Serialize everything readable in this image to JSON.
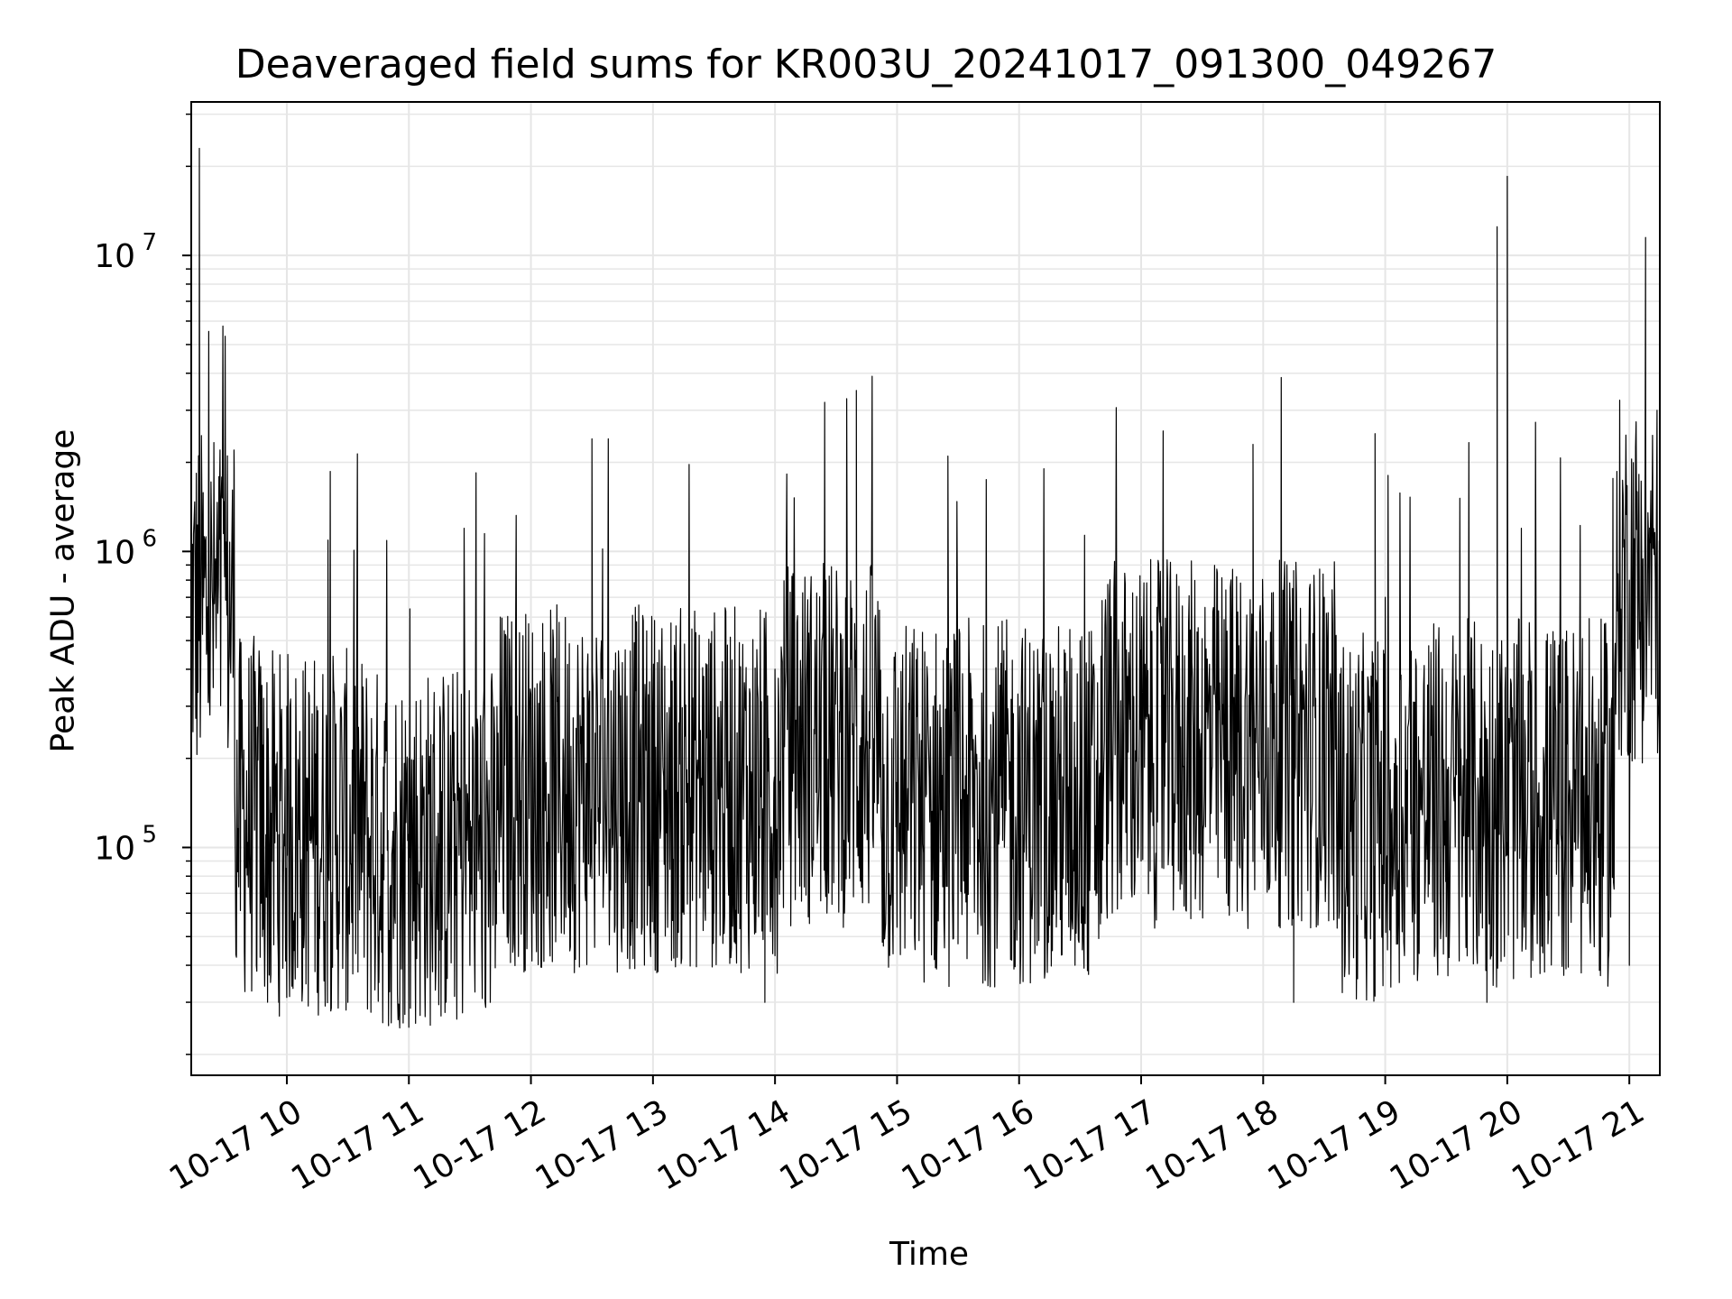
{
  "chart_data": {
    "type": "line",
    "title": "Deaveraged field sums for KR003U_20241017_091300_049267",
    "xlabel": "Time",
    "ylabel": "Peak ADU - average",
    "yscale": "log",
    "ylim": [
      17000,
      33000000
    ],
    "xlim": [
      "2024-10-17 09:13",
      "2024-10-17 21:15"
    ],
    "x_tick_labels": [
      "10-17 10",
      "10-17 11",
      "10-17 12",
      "10-17 13",
      "10-17 14",
      "10-17 15",
      "10-17 16",
      "10-17 17",
      "10-17 18",
      "10-17 19",
      "10-17 20",
      "10-17 21"
    ],
    "y_tick_labels": [
      {
        "base": "10",
        "exp": "5"
      },
      {
        "base": "10",
        "exp": "6"
      },
      {
        "base": "10",
        "exp": "7"
      }
    ],
    "grid": true,
    "line_color": "#000000",
    "grid_color": "#e6e6e6",
    "series": [
      {
        "x": [
          "2024-10-17 09:13",
          "2024-10-17 09:15",
          "2024-10-17 09:17",
          "2024-10-17 09:19",
          "2024-10-17 09:21",
          "2024-10-17 09:24",
          "2024-10-17 09:27",
          "2024-10-17 09:30",
          "2024-10-17 09:34",
          "2024-10-17 09:38",
          "2024-10-17 09:42",
          "2024-10-17 09:45",
          "2024-10-17 09:48",
          "2024-10-17 09:52",
          "2024-10-17 09:56",
          "2024-10-17 10:00",
          "2024-10-17 10:15",
          "2024-10-17 10:30",
          "2024-10-17 10:45",
          "2024-10-17 10:50",
          "2024-10-17 11:00",
          "2024-10-17 11:15",
          "2024-10-17 11:30",
          "2024-10-17 11:40",
          "2024-10-17 11:50",
          "2024-10-17 12:00",
          "2024-10-17 12:30",
          "2024-10-17 12:50",
          "2024-10-17 13:00",
          "2024-10-17 13:30",
          "2024-10-17 13:55",
          "2024-10-17 14:00",
          "2024-10-17 14:25",
          "2024-10-17 14:40",
          "2024-10-17 14:45",
          "2024-10-17 15:00",
          "2024-10-17 15:25",
          "2024-10-17 15:30",
          "2024-10-17 16:00",
          "2024-10-17 16:30",
          "2024-10-17 17:00",
          "2024-10-17 17:30",
          "2024-10-17 17:55",
          "2024-10-17 18:15",
          "2024-10-17 18:30",
          "2024-10-17 18:55",
          "2024-10-17 19:00",
          "2024-10-17 19:30",
          "2024-10-17 19:50",
          "2024-10-17 19:55",
          "2024-10-17 20:00",
          "2024-10-17 20:30",
          "2024-10-17 20:50",
          "2024-10-17 21:00",
          "2024-10-17 21:08",
          "2024-10-17 21:10",
          "2024-10-17 21:15"
        ],
        "y": [
          500000,
          700000,
          23000000,
          800000,
          650000,
          750000,
          1800000,
          900000,
          2200000,
          200000,
          60000,
          40000,
          50000,
          35000,
          30000,
          300000,
          60000,
          30000,
          50000,
          25000,
          200000,
          45000,
          40000,
          30000,
          300000,
          100000,
          2400000,
          80000,
          300000,
          60000,
          30000,
          400000,
          800000,
          3500000,
          400000,
          80000,
          2100000,
          60000,
          200000,
          500000,
          90000,
          200000,
          2300000,
          30000,
          700000,
          2500000,
          700000,
          50000,
          30000,
          12500000,
          18500000,
          100000,
          60000,
          40000,
          11500000,
          1200000,
          800000
        ]
      }
    ]
  }
}
